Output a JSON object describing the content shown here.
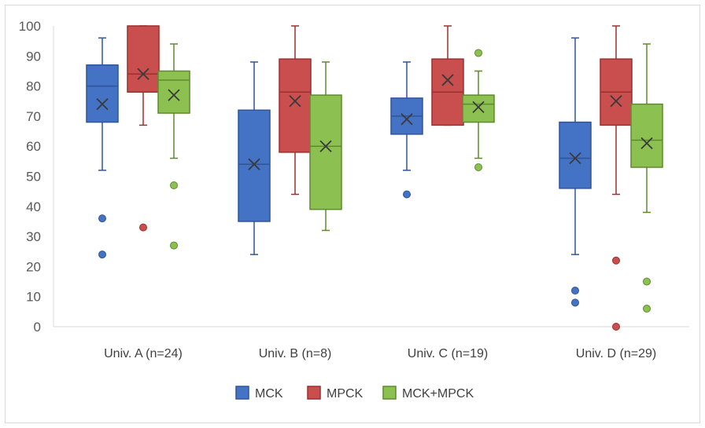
{
  "chart_data": {
    "type": "boxplot",
    "categories": [
      "Univ. A (n=24)",
      "Univ. B (n=8)",
      "Univ. C (n=19)",
      "Univ. D (n=29)"
    ],
    "ylim": [
      0,
      100
    ],
    "yticks": [
      0,
      10,
      20,
      30,
      40,
      50,
      60,
      70,
      80,
      90,
      100
    ],
    "grid": false,
    "legend_position": "bottom",
    "series": [
      {
        "name": "MCK",
        "color": "#4472c4",
        "edge": "#2f5597",
        "boxes": [
          {
            "min": 52,
            "q1": 68,
            "median": 80,
            "q3": 87,
            "max": 96,
            "mean": 74,
            "outliers": [
              36,
              24
            ]
          },
          {
            "min": 24,
            "q1": 35,
            "median": 54,
            "q3": 72,
            "max": 88,
            "mean": 54,
            "outliers": []
          },
          {
            "min": 52,
            "q1": 64,
            "median": 70,
            "q3": 76,
            "max": 88,
            "mean": 69,
            "outliers": [
              44
            ]
          },
          {
            "min": 24,
            "q1": 46,
            "median": 56,
            "q3": 68,
            "max": 96,
            "mean": 56,
            "outliers": [
              12,
              8
            ]
          }
        ]
      },
      {
        "name": "MPCK",
        "color": "#c94e4e",
        "edge": "#9e2f2f",
        "boxes": [
          {
            "min": 67,
            "q1": 78,
            "median": 84,
            "q3": 100,
            "max": 100,
            "mean": 84,
            "outliers": [
              33
            ]
          },
          {
            "min": 44,
            "q1": 58,
            "median": 78,
            "q3": 89,
            "max": 100,
            "mean": 75,
            "outliers": []
          },
          {
            "min": 67,
            "q1": 67,
            "median": 78,
            "q3": 89,
            "max": 100,
            "mean": 82,
            "outliers": []
          },
          {
            "min": 44,
            "q1": 67,
            "median": 78,
            "q3": 89,
            "max": 100,
            "mean": 75,
            "outliers": [
              22,
              0
            ]
          }
        ]
      },
      {
        "name": "MCK+MPCK",
        "color": "#8cc152",
        "edge": "#5e8a2e",
        "boxes": [
          {
            "min": 56,
            "q1": 71,
            "median": 82,
            "q3": 85,
            "max": 94,
            "mean": 77,
            "outliers": [
              47,
              27
            ]
          },
          {
            "min": 32,
            "q1": 39,
            "median": 60,
            "q3": 77,
            "max": 88,
            "mean": 60,
            "outliers": []
          },
          {
            "min": 56,
            "q1": 68,
            "median": 74,
            "q3": 77,
            "max": 85,
            "mean": 73,
            "outliers": [
              91,
              53
            ]
          },
          {
            "min": 38,
            "q1": 53,
            "median": 62,
            "q3": 74,
            "max": 94,
            "mean": 61,
            "outliers": [
              15,
              6
            ]
          }
        ]
      }
    ]
  }
}
